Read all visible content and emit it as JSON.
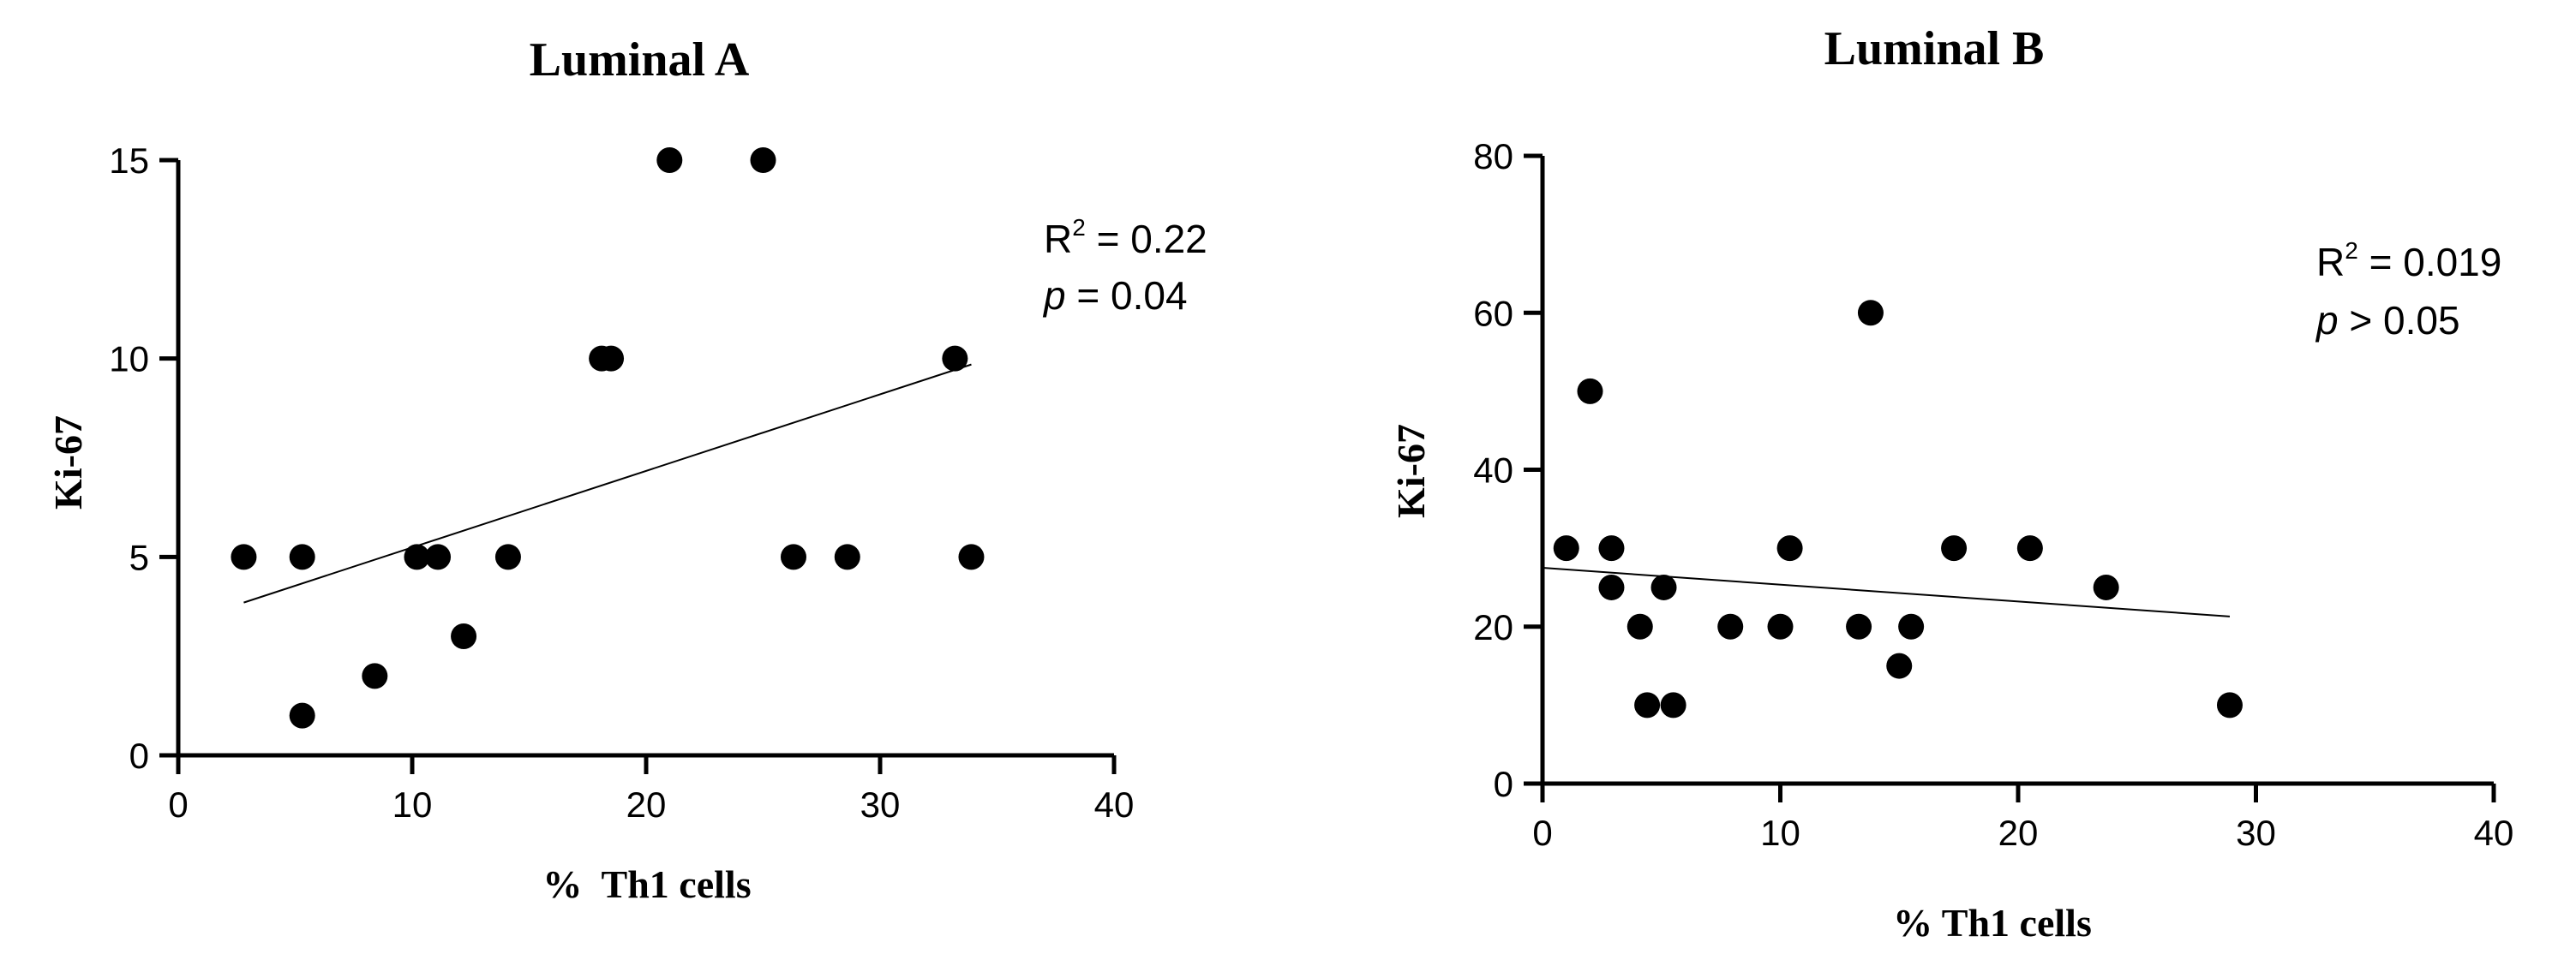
{
  "chart_data": [
    {
      "type": "scatter",
      "title": "Luminal A",
      "xlabel": "%  Th1 cells",
      "ylabel": "Ki-67",
      "xlim": [
        0,
        40
      ],
      "ylim": [
        0,
        15
      ],
      "xticks": [
        "0",
        "10",
        "20",
        "30",
        "40"
      ],
      "yticks": [
        "0",
        "5",
        "10",
        "15"
      ],
      "grid": false,
      "points": [
        {
          "x": 2.8,
          "y": 5
        },
        {
          "x": 5.3,
          "y": 5
        },
        {
          "x": 5.3,
          "y": 1
        },
        {
          "x": 8.4,
          "y": 2
        },
        {
          "x": 10.2,
          "y": 5
        },
        {
          "x": 11.1,
          "y": 5
        },
        {
          "x": 12.2,
          "y": 3
        },
        {
          "x": 14.1,
          "y": 5
        },
        {
          "x": 18.1,
          "y": 10
        },
        {
          "x": 18.5,
          "y": 10
        },
        {
          "x": 21.0,
          "y": 15
        },
        {
          "x": 25.0,
          "y": 15
        },
        {
          "x": 26.3,
          "y": 5
        },
        {
          "x": 28.6,
          "y": 5
        },
        {
          "x": 33.2,
          "y": 10
        },
        {
          "x": 33.9,
          "y": 5
        }
      ],
      "fit_line": {
        "x": [
          2.8,
          33.9
        ],
        "y": [
          3.85,
          9.85
        ]
      },
      "annotation": {
        "r2_label": "R",
        "r2_sup": "2",
        "r2_value": " = 0.22",
        "p_label": "p",
        "p_value": " = 0.04"
      }
    },
    {
      "type": "scatter",
      "title": "Luminal B",
      "xlabel": "% Th1 cells",
      "ylabel": "Ki-67",
      "xlim": [
        0,
        40
      ],
      "ylim": [
        0,
        80
      ],
      "xticks": [
        "0",
        "10",
        "20",
        "30",
        "40"
      ],
      "yticks": [
        "0",
        "20",
        "40",
        "60",
        "80"
      ],
      "grid": false,
      "points": [
        {
          "x": 1.0,
          "y": 30
        },
        {
          "x": 2.0,
          "y": 50
        },
        {
          "x": 2.9,
          "y": 30
        },
        {
          "x": 2.9,
          "y": 25
        },
        {
          "x": 4.1,
          "y": 20
        },
        {
          "x": 4.4,
          "y": 10
        },
        {
          "x": 5.1,
          "y": 25
        },
        {
          "x": 5.5,
          "y": 10
        },
        {
          "x": 7.9,
          "y": 20
        },
        {
          "x": 10.0,
          "y": 20
        },
        {
          "x": 10.4,
          "y": 30
        },
        {
          "x": 13.3,
          "y": 20
        },
        {
          "x": 13.8,
          "y": 60
        },
        {
          "x": 15.0,
          "y": 15
        },
        {
          "x": 15.5,
          "y": 20
        },
        {
          "x": 17.3,
          "y": 30
        },
        {
          "x": 20.5,
          "y": 30
        },
        {
          "x": 23.7,
          "y": 25
        },
        {
          "x": 28.9,
          "y": 10
        }
      ],
      "fit_line": {
        "x": [
          0.0,
          28.9
        ],
        "y": [
          27.5,
          21.3
        ]
      },
      "annotation": {
        "r2_label": "R",
        "r2_sup": "2",
        "r2_value": " = 0.019",
        "p_label": "p",
        "p_value": " > 0.05"
      }
    }
  ]
}
